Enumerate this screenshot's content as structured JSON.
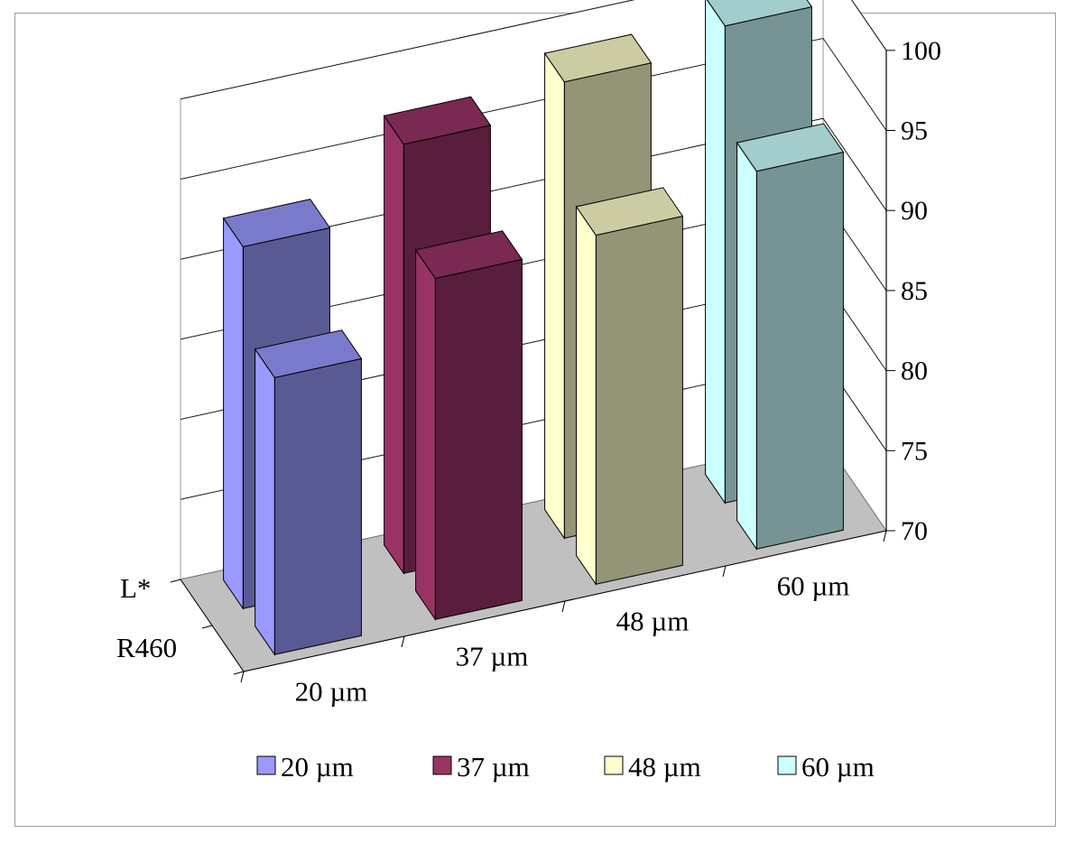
{
  "chart_data": {
    "type": "bar",
    "subtype": "3d-column",
    "title": "",
    "categories": [
      "20 µm",
      "37 µm",
      "48 µm",
      "60 µm"
    ],
    "rows": [
      "L*",
      "R460"
    ],
    "series": [
      {
        "name": "20 µm",
        "color": "#9999ff",
        "values": {
          "L*": 92.6,
          "R460": 87.3
        }
      },
      {
        "name": "37 µm",
        "color": "#993366",
        "values": {
          "L*": 96.8,
          "R460": 91.3
        }
      },
      {
        "name": "48 µm",
        "color": "#ffffcc",
        "values": {
          "L*": 98.5,
          "R460": 91.8
        }
      },
      {
        "name": "60 µm",
        "color": "#ccffff",
        "values": {
          "L*": 99.8,
          "R460": 93.6
        }
      }
    ],
    "zlim": [
      70,
      100
    ],
    "z_ticks": [
      "70",
      "75",
      "80",
      "85",
      "90",
      "95",
      "100"
    ],
    "grid": true,
    "legend": {
      "position": "bottom",
      "entries": [
        "20 µm",
        "37 µm",
        "48 µm",
        "60 µm"
      ]
    }
  }
}
